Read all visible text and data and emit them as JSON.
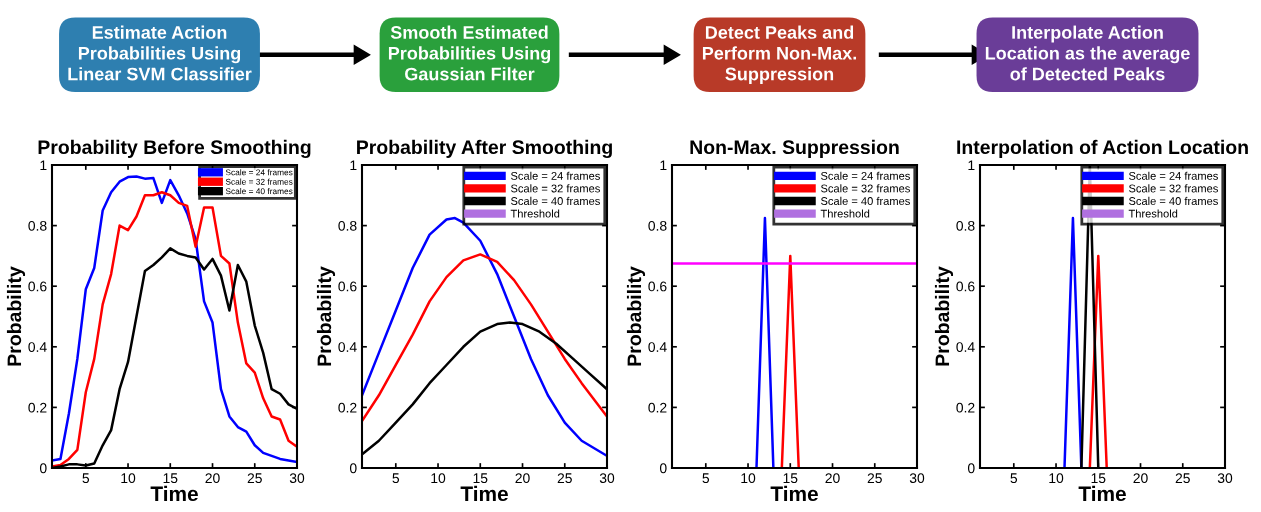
{
  "chart_data": [
    {
      "type": "line",
      "title": "Probability Before Smoothing",
      "xlabel": "Time",
      "ylabel": "Probability",
      "annotations": [
        "Estimate Action\nProbabilities Using\nLinear SVM Classifier"
      ],
      "xlim": [
        1,
        30
      ],
      "xticks": [
        5,
        10,
        15,
        20,
        25,
        30
      ],
      "ylim": [
        0,
        1
      ],
      "yticks": [
        0,
        0.2,
        0.4,
        0.6,
        0.8,
        1
      ],
      "grid": false,
      "legend": "top right",
      "line_style": "solid",
      "marker": "none",
      "x": [
        1,
        2,
        3,
        4,
        5,
        6,
        7,
        8,
        9,
        10,
        11,
        12,
        13,
        14,
        15,
        16,
        17,
        18,
        19,
        20,
        21,
        22,
        23,
        24,
        25,
        26,
        27,
        28,
        29,
        30
      ],
      "series": [
        {
          "name": "Scale = 24 frames",
          "color": "#0000ff",
          "values": [
            0.025,
            0.03,
            0.18,
            0.36,
            0.59,
            0.66,
            0.85,
            0.91,
            0.945,
            0.96,
            0.962,
            0.955,
            0.957,
            0.875,
            0.95,
            0.9,
            0.84,
            0.755,
            0.55,
            0.48,
            0.26,
            0.17,
            0.135,
            0.12,
            0.075,
            0.05,
            0.04,
            0.03,
            0.025,
            0.02
          ]
        },
        {
          "name": "Scale = 32 frames",
          "color": "#ff0000",
          "values": [
            0.005,
            0.01,
            0.03,
            0.06,
            0.25,
            0.36,
            0.54,
            0.64,
            0.8,
            0.785,
            0.83,
            0.9,
            0.9,
            0.91,
            0.9,
            0.875,
            0.865,
            0.73,
            0.86,
            0.86,
            0.7,
            0.675,
            0.48,
            0.345,
            0.315,
            0.23,
            0.17,
            0.16,
            0.09,
            0.07
          ]
        },
        {
          "name": "Scale = 40 frames",
          "color": "#000000",
          "values": [
            0.0,
            0.005,
            0.012,
            0.012,
            0.008,
            0.015,
            0.075,
            0.125,
            0.26,
            0.35,
            0.5,
            0.65,
            0.67,
            0.695,
            0.725,
            0.708,
            0.7,
            0.695,
            0.655,
            0.69,
            0.635,
            0.52,
            0.67,
            0.615,
            0.47,
            0.38,
            0.26,
            0.245,
            0.21,
            0.195
          ]
        }
      ]
    },
    {
      "type": "line",
      "title": "Probability After Smoothing",
      "xlabel": "Time",
      "ylabel": "Probability",
      "annotations": [
        "Smooth Estimated\nProbabilities Using\nGaussian Filter"
      ],
      "xlim": [
        1,
        30
      ],
      "xticks": [
        5,
        10,
        15,
        20,
        25,
        30
      ],
      "ylim": [
        0,
        1
      ],
      "yticks": [
        0,
        0.2,
        0.4,
        0.6,
        0.8,
        1
      ],
      "grid": false,
      "legend": "top right",
      "line_style": "solid",
      "marker": "none",
      "series": [
        {
          "name": "Scale = 24 frames",
          "color": "#0000ff",
          "x": [
            1,
            3,
            5,
            7,
            9,
            11,
            12,
            13,
            15,
            17,
            19,
            21,
            23,
            25,
            27,
            30
          ],
          "values": [
            0.24,
            0.38,
            0.52,
            0.66,
            0.77,
            0.82,
            0.825,
            0.81,
            0.75,
            0.64,
            0.5,
            0.36,
            0.24,
            0.15,
            0.09,
            0.04
          ]
        },
        {
          "name": "Scale = 32 frames",
          "color": "#ff0000",
          "x": [
            1,
            3,
            5,
            7,
            9,
            11,
            13,
            15,
            17,
            19,
            21,
            23,
            25,
            27,
            30
          ],
          "values": [
            0.155,
            0.24,
            0.34,
            0.44,
            0.55,
            0.63,
            0.685,
            0.705,
            0.68,
            0.62,
            0.54,
            0.45,
            0.36,
            0.28,
            0.17
          ]
        },
        {
          "name": "Scale = 40 frames",
          "color": "#000000",
          "x": [
            1,
            3,
            5,
            7,
            9,
            11,
            13,
            15,
            17,
            18.5,
            20,
            22,
            24,
            26,
            28,
            30
          ],
          "values": [
            0.045,
            0.09,
            0.15,
            0.21,
            0.28,
            0.34,
            0.4,
            0.45,
            0.475,
            0.48,
            0.475,
            0.45,
            0.41,
            0.36,
            0.31,
            0.26
          ]
        },
        {
          "name": "Threshold",
          "color": "#b070e0"
        }
      ]
    },
    {
      "type": "line",
      "title": "Non-Max. Suppression",
      "xlabel": "Time",
      "ylabel": "Probability",
      "annotations": [
        "Detect Peaks and\nPerform Non-Max.\nSuppression"
      ],
      "xlim": [
        1,
        30
      ],
      "xticks": [
        5,
        10,
        15,
        20,
        25,
        30
      ],
      "ylim": [
        0,
        1
      ],
      "yticks": [
        0,
        0.2,
        0.4,
        0.6,
        0.8,
        1
      ],
      "grid": false,
      "legend": "top right",
      "line_style": "solid",
      "marker": "none",
      "ref_lines": [
        {
          "axis": "y",
          "value": 0.675,
          "color": "#ff00ff"
        }
      ],
      "series": [
        {
          "name": "Scale = 24 frames",
          "color": "#0000ff",
          "x": [
            11,
            12,
            13
          ],
          "values": [
            0,
            0.825,
            0
          ]
        },
        {
          "name": "Scale = 32 frames",
          "color": "#ff0000",
          "x": [
            14,
            15,
            16
          ],
          "values": [
            0,
            0.7,
            0
          ]
        },
        {
          "name": "Scale = 40 frames",
          "color": "#000000"
        },
        {
          "name": "Threshold",
          "color": "#b070e0"
        }
      ]
    },
    {
      "type": "line",
      "title": "Interpolation of Action Location",
      "xlabel": "Time",
      "ylabel": "Probability",
      "annotations": [
        "Interpolate Action\nLocation as the average\nof Detected Peaks"
      ],
      "xlim": [
        1,
        30
      ],
      "xticks": [
        5,
        10,
        15,
        20,
        25,
        30
      ],
      "ylim": [
        0,
        1
      ],
      "yticks": [
        0,
        0.2,
        0.4,
        0.6,
        0.8,
        1
      ],
      "grid": false,
      "legend": "top right",
      "line_style": "solid",
      "marker": "none",
      "series": [
        {
          "name": "Scale = 24 frames",
          "color": "#0000ff",
          "x": [
            11,
            12,
            13
          ],
          "values": [
            0,
            0.825,
            0
          ]
        },
        {
          "name": "Scale = 32 frames",
          "color": "#ff0000",
          "x": [
            14,
            15,
            16
          ],
          "values": [
            0,
            0.7,
            0
          ]
        },
        {
          "name": "Scale = 40 frames",
          "color": "#000000",
          "x": [
            13,
            14,
            15
          ],
          "values": [
            0,
            1.0,
            0
          ]
        },
        {
          "name": "Threshold",
          "color": "#b070e0"
        }
      ]
    }
  ]
}
